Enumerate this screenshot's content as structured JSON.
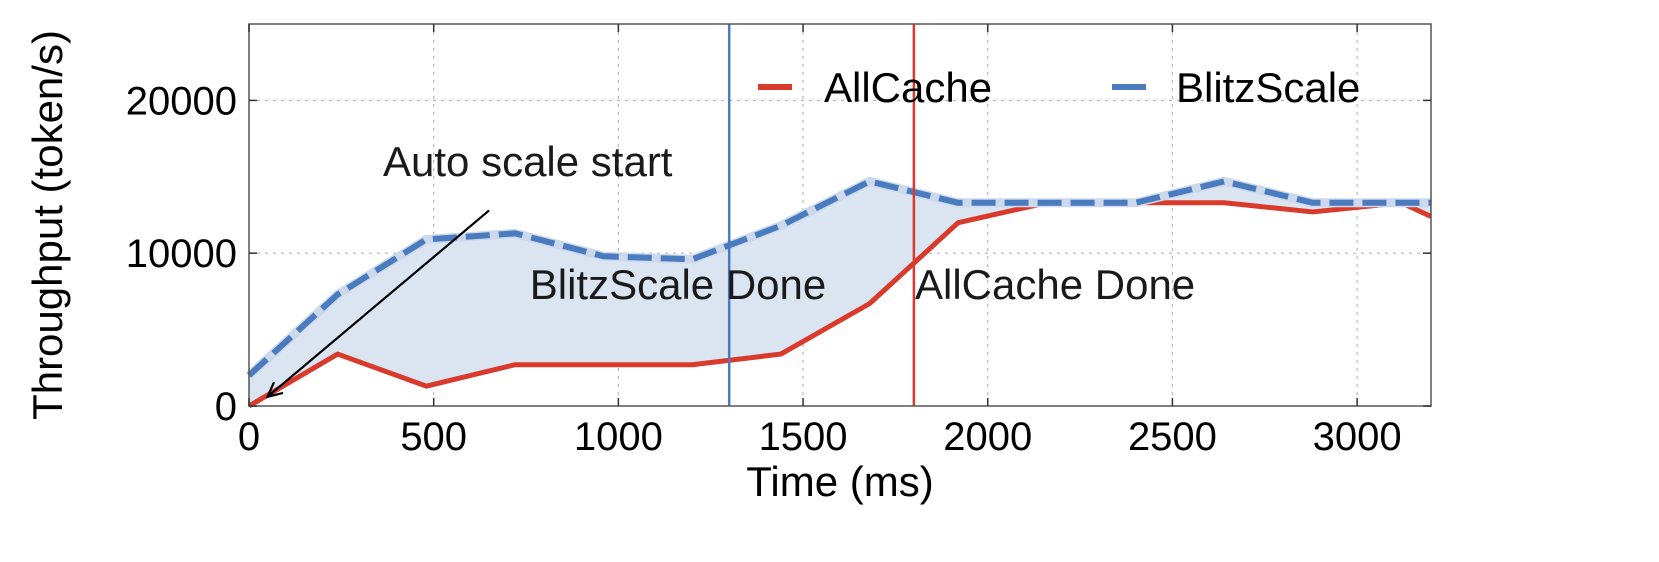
{
  "chart_data": {
    "type": "line",
    "title": "",
    "xlabel": "Time (ms)",
    "ylabel": "Throughput (token/s)",
    "xlim": [
      0,
      3200
    ],
    "ylim": [
      0,
      25000
    ],
    "xticks": [
      0,
      500,
      1000,
      1500,
      2000,
      2500,
      3000
    ],
    "yticks": [
      0,
      10000,
      20000
    ],
    "grid": true,
    "legend_position": "top-right",
    "series": [
      {
        "name": "AllCache",
        "color": "#d93a2b",
        "style": "solid",
        "x": [
          0,
          240,
          480,
          720,
          960,
          1200,
          1440,
          1680,
          1920,
          2160,
          2400,
          2640,
          2880,
          3120,
          3200
        ],
        "y": [
          0,
          3400,
          1300,
          2700,
          2700,
          2700,
          3400,
          6700,
          12000,
          13300,
          13300,
          13300,
          12700,
          13300,
          12400
        ]
      },
      {
        "name": "BlitzScale",
        "color": "#4a7bbf",
        "style": "dashed",
        "x": [
          0,
          240,
          480,
          720,
          960,
          1200,
          1440,
          1680,
          1920,
          2160,
          2400,
          2640,
          2880,
          3120,
          3200
        ],
        "y": [
          2000,
          7300,
          10900,
          11300,
          9800,
          9600,
          11800,
          14700,
          13300,
          13300,
          13300,
          14700,
          13300,
          13300,
          13300
        ]
      }
    ],
    "vlines": [
      {
        "x": 1300,
        "color": "#4a7bbf",
        "label": "BlitzScale Done"
      },
      {
        "x": 1800,
        "color": "#d93a2b",
        "label": "AllCache Done"
      }
    ],
    "annotations": [
      {
        "text": "Auto scale start",
        "arrow_from": [
          650,
          12800
        ],
        "arrow_to": [
          50,
          600
        ]
      }
    ],
    "fill_between": {
      "color": "#dbe4f1"
    }
  }
}
